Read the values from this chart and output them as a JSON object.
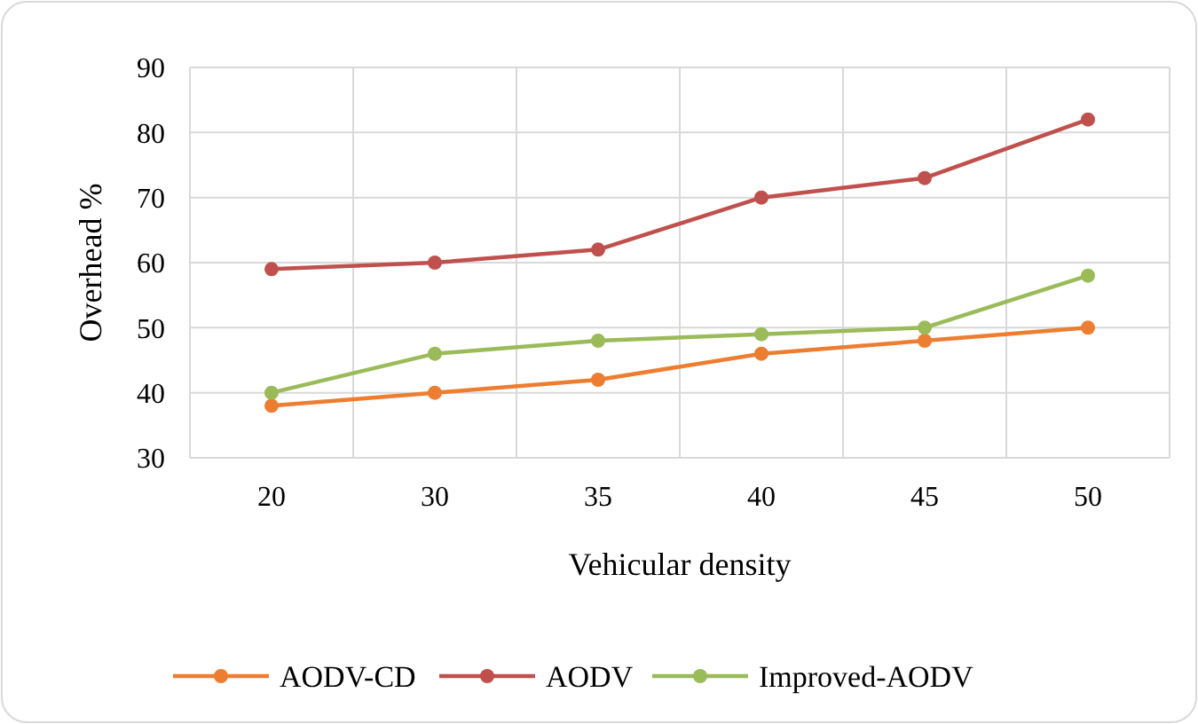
{
  "chart_data": {
    "type": "line",
    "xlabel": "Vehicular density",
    "ylabel": "Overhead %",
    "categories": [
      "20",
      "30",
      "35",
      "40",
      "45",
      "50"
    ],
    "series": [
      {
        "name": "AODV-CD",
        "color": "#ed7d31",
        "values": [
          38,
          40,
          42,
          46,
          48,
          50
        ]
      },
      {
        "name": "AODV",
        "color": "#c0504d",
        "values": [
          59,
          60,
          62,
          70,
          73,
          82
        ]
      },
      {
        "name": "Improved-AODV",
        "color": "#9bbb59",
        "values": [
          40,
          46,
          48,
          49,
          50,
          58
        ]
      }
    ],
    "ylim": [
      30,
      90
    ],
    "yticks": [
      30,
      40,
      50,
      60,
      70,
      80,
      90
    ],
    "grid": true,
    "legend": "bottom",
    "marker": "circle",
    "line_style": "solid"
  }
}
